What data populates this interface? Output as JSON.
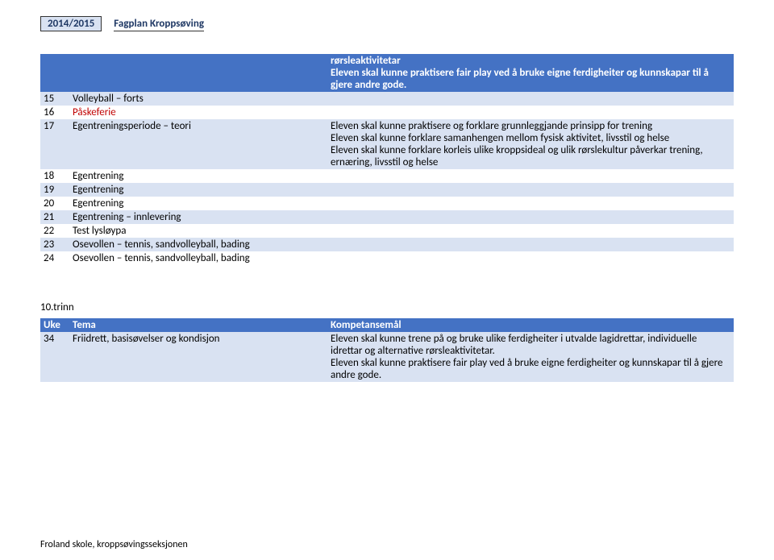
{
  "header": {
    "year": "2014/2015",
    "title": "Fagplan Kroppsøving"
  },
  "top_comp": "rørsleaktivitetar\nEleven skal kunne praktisere fair play ved å bruke eigne ferdigheiter og kunnskapar til å gjere andre gode.",
  "rows1": [
    {
      "n": "15",
      "t": "Volleyball – forts",
      "c": "",
      "alt": true,
      "red": false
    },
    {
      "n": "16",
      "t": "Påskeferie",
      "c": "",
      "alt": false,
      "red": true
    },
    {
      "n": "17",
      "t": "Egentreningsperiode – teori",
      "c": "Eleven skal kunne praktisere og forklare grunnleggjande prinsipp for trening\nEleven skal kunne forklare samanhengen mellom fysisk aktivitet, livsstil og helse\nEleven skal kunne forklare korleis ulike kroppsideal og ulik rørslekultur påverkar trening, ernæring, livsstil og helse",
      "alt": true,
      "red": false
    },
    {
      "n": "18",
      "t": "Egentrening",
      "c": "",
      "alt": false,
      "red": false
    },
    {
      "n": "19",
      "t": "Egentrening",
      "c": "",
      "alt": true,
      "red": false
    },
    {
      "n": "20",
      "t": "Egentrening",
      "c": "",
      "alt": false,
      "red": false
    },
    {
      "n": "21",
      "t": "Egentrening – innlevering",
      "c": "",
      "alt": true,
      "red": false
    },
    {
      "n": "22",
      "t": "Test lysløypa",
      "c": "",
      "alt": false,
      "red": false
    },
    {
      "n": "23",
      "t": "Osevollen – tennis, sandvolleyball, bading",
      "c": "",
      "alt": true,
      "red": false
    },
    {
      "n": "24",
      "t": "Osevollen – tennis, sandvolleyball, bading",
      "c": "",
      "alt": false,
      "red": false
    }
  ],
  "section2_title": "10.trinn",
  "table2_head": {
    "uke": "Uke",
    "tema": "Tema",
    "komp": "Kompetansemål"
  },
  "rows2": [
    {
      "n": "34",
      "t": "Friidrett, basisøvelser og kondisjon",
      "c": "Eleven skal kunne trene på og bruke ulike ferdigheiter i utvalde lagidrettar, individuelle idrettar og alternative rørsleaktivitetar.\nEleven skal kunne praktisere fair play ved å bruke eigne ferdigheiter og kunnskapar til å gjere andre gode.",
      "alt": true
    }
  ],
  "footer": "Froland skole, kroppsøvingsseksjonen"
}
